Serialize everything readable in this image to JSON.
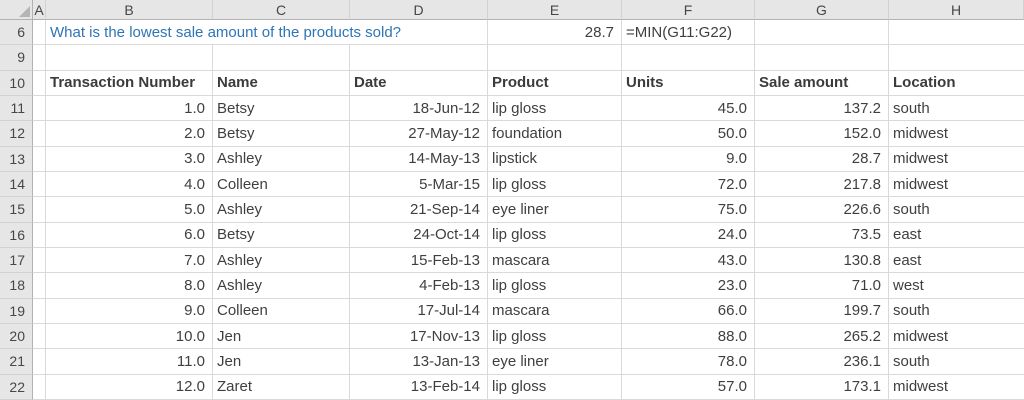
{
  "column_headers": [
    "A",
    "B",
    "C",
    "D",
    "E",
    "F",
    "G",
    "H"
  ],
  "question": {
    "row": "6",
    "text": "What is the lowest sale amount of the products sold?",
    "answer": "28.7",
    "formula": "=MIN(G11:G22)"
  },
  "empty_row": "9",
  "table": {
    "header_row": "10",
    "headers": [
      "Transaction Number",
      "Name",
      "Date",
      "Product",
      "Units",
      "Sale amount",
      "Location"
    ],
    "rows": [
      {
        "row": "11",
        "cells": [
          "1.0",
          "Betsy",
          "18-Jun-12",
          "lip gloss",
          "45.0",
          "137.2",
          "south"
        ]
      },
      {
        "row": "12",
        "cells": [
          "2.0",
          "Betsy",
          "27-May-12",
          "foundation",
          "50.0",
          "152.0",
          "midwest"
        ]
      },
      {
        "row": "13",
        "cells": [
          "3.0",
          "Ashley",
          "14-May-13",
          "lipstick",
          "9.0",
          "28.7",
          "midwest"
        ]
      },
      {
        "row": "14",
        "cells": [
          "4.0",
          "Colleen",
          "5-Mar-15",
          "lip gloss",
          "72.0",
          "217.8",
          "midwest"
        ]
      },
      {
        "row": "15",
        "cells": [
          "5.0",
          "Ashley",
          "21-Sep-14",
          "eye liner",
          "75.0",
          "226.6",
          "south"
        ]
      },
      {
        "row": "16",
        "cells": [
          "6.0",
          "Betsy",
          "24-Oct-14",
          "lip gloss",
          "24.0",
          "73.5",
          "east"
        ]
      },
      {
        "row": "17",
        "cells": [
          "7.0",
          "Ashley",
          "15-Feb-13",
          "mascara",
          "43.0",
          "130.8",
          "east"
        ]
      },
      {
        "row": "18",
        "cells": [
          "8.0",
          "Ashley",
          "4-Feb-13",
          "lip gloss",
          "23.0",
          "71.0",
          "west"
        ]
      },
      {
        "row": "19",
        "cells": [
          "9.0",
          "Colleen",
          "17-Jul-14",
          "mascara",
          "66.0",
          "199.7",
          "south"
        ]
      },
      {
        "row": "20",
        "cells": [
          "10.0",
          "Jen",
          "17-Nov-13",
          "lip gloss",
          "88.0",
          "265.2",
          "midwest"
        ]
      },
      {
        "row": "21",
        "cells": [
          "11.0",
          "Jen",
          "13-Jan-13",
          "eye liner",
          "78.0",
          "236.1",
          "south"
        ]
      },
      {
        "row": "22",
        "cells": [
          "12.0",
          "Zaret",
          "13-Feb-14",
          "lip gloss",
          "57.0",
          "173.1",
          "midwest"
        ]
      }
    ]
  },
  "colors": {
    "question_blue": "#2E75B6",
    "grid_line": "#d9d9d9",
    "header_bg": "#e6e6e6",
    "cell_text": "#3f3f3f"
  }
}
